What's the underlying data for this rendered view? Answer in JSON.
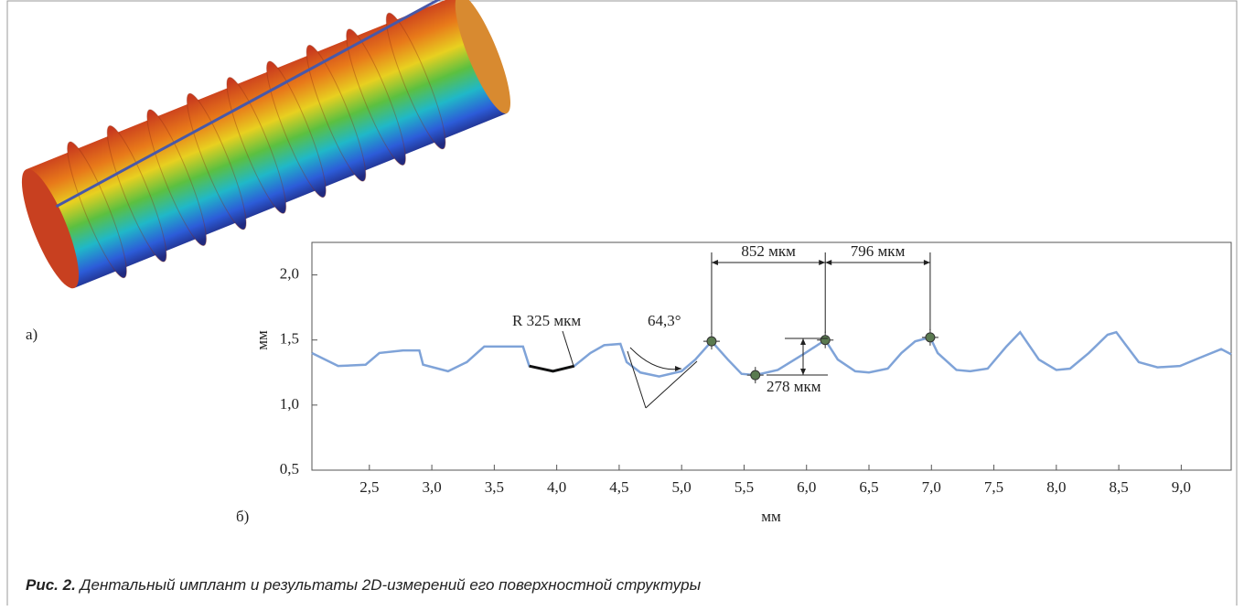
{
  "chart_data": {
    "type": "line",
    "xlabel": "мм",
    "ylabel": "мм",
    "xlim": [
      2.04,
      9.4
    ],
    "ylim": [
      0.5,
      2.25
    ],
    "xticks": [
      {
        "value": 2.5,
        "label": "2,5"
      },
      {
        "value": 3.0,
        "label": "3,0"
      },
      {
        "value": 3.5,
        "label": "3,5"
      },
      {
        "value": 4.0,
        "label": "4,0"
      },
      {
        "value": 4.5,
        "label": "4,5"
      },
      {
        "value": 5.0,
        "label": "5,0"
      },
      {
        "value": 5.5,
        "label": "5,5"
      },
      {
        "value": 6.0,
        "label": "6,0"
      },
      {
        "value": 6.5,
        "label": "6,5"
      },
      {
        "value": 7.0,
        "label": "7,0"
      },
      {
        "value": 7.5,
        "label": "7,5"
      },
      {
        "value": 8.0,
        "label": "8,0"
      },
      {
        "value": 8.5,
        "label": "8,5"
      },
      {
        "value": 9.0,
        "label": "9,0"
      }
    ],
    "yticks": [
      {
        "value": 0.5,
        "label": "0,5"
      },
      {
        "value": 1.0,
        "label": "1,0"
      },
      {
        "value": 1.5,
        "label": "1,5"
      },
      {
        "value": 2.0,
        "label": "2,0"
      }
    ],
    "x": [
      2.04,
      2.25,
      2.47,
      2.58,
      2.77,
      2.9,
      2.93,
      3.13,
      3.28,
      3.42,
      3.73,
      3.78,
      3.97,
      4.14,
      4.27,
      4.38,
      4.51,
      4.56,
      4.67,
      4.82,
      5.0,
      5.11,
      5.24,
      5.37,
      5.48,
      5.59,
      5.77,
      5.99,
      6.15,
      6.25,
      6.39,
      6.5,
      6.65,
      6.76,
      6.87,
      6.99,
      7.05,
      7.2,
      7.31,
      7.45,
      7.6,
      7.71,
      7.86,
      8.0,
      8.11,
      8.26,
      8.41,
      8.48,
      8.55,
      8.66,
      8.81,
      8.99,
      9.14,
      9.32,
      9.4
    ],
    "series": [
      {
        "color": "#7fa3d8",
        "values": [
          1.4,
          1.3,
          1.31,
          1.4,
          1.42,
          1.42,
          1.31,
          1.26,
          1.33,
          1.45,
          1.45,
          1.3,
          1.26,
          1.3,
          1.4,
          1.46,
          1.47,
          1.33,
          1.25,
          1.22,
          1.26,
          1.35,
          1.49,
          1.35,
          1.24,
          1.23,
          1.27,
          1.4,
          1.5,
          1.35,
          1.26,
          1.25,
          1.28,
          1.4,
          1.49,
          1.52,
          1.4,
          1.27,
          1.26,
          1.28,
          1.45,
          1.56,
          1.35,
          1.27,
          1.28,
          1.4,
          1.54,
          1.56,
          1.47,
          1.33,
          1.29,
          1.3,
          1.36,
          1.43,
          1.39
        ]
      }
    ],
    "annotations": [
      "R 325 мкм",
      "64,3°",
      "852 мкм",
      "796 мкм",
      "278 мкм"
    ]
  },
  "panel_labels": [
    "а)",
    "б)"
  ],
  "caption": {
    "prefix": "Рис. 2.",
    "text": "Дентальный имплант и результаты 2D-измерений его поверхностной структуры"
  }
}
